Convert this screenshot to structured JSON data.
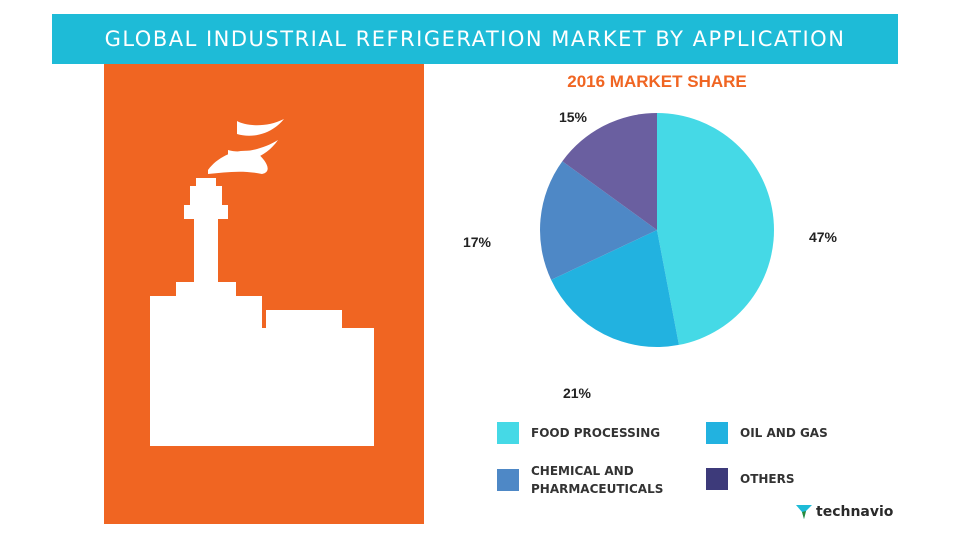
{
  "header": {
    "title": "GLOBAL INDUSTRIAL REFRIGERATION MARKET BY APPLICATION"
  },
  "brand": {
    "name": "technavio",
    "logo_icon": "technavio-logo-icon",
    "colors": [
      "#1ebbd7",
      "#2a8a3a"
    ]
  },
  "illustration": {
    "icon": "factory-icon",
    "background_color": "#f06522",
    "icon_color": "#ffffff"
  },
  "chart_data": {
    "type": "pie",
    "title": "2016 MARKET SHARE",
    "categories": [
      "FOOD PROCESSING",
      "OIL AND GAS",
      "CHEMICAL AND\nPHARMACEUTICALS",
      "OTHERS"
    ],
    "values": [
      47,
      21,
      17,
      15
    ],
    "labels": [
      "47%",
      "21%",
      "17%",
      "15%"
    ],
    "colors": [
      "#45d9e6",
      "#22b2e0",
      "#4e88c6",
      "#6a5fa0"
    ],
    "legend_colors": [
      "#45d9e6",
      "#22b2e0",
      "#4e88c6",
      "#3d3a7a"
    ],
    "legend_position": "bottom"
  }
}
